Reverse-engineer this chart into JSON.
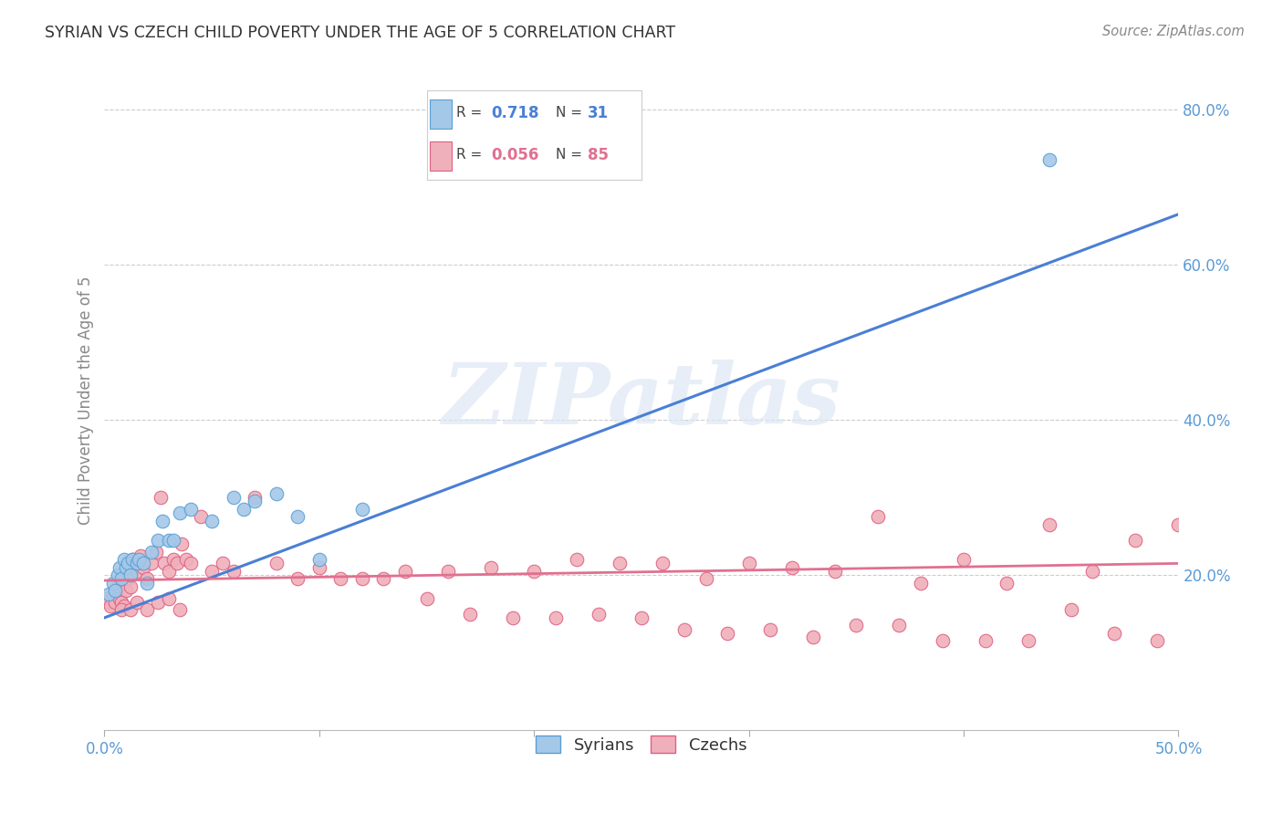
{
  "title": "SYRIAN VS CZECH CHILD POVERTY UNDER THE AGE OF 5 CORRELATION CHART",
  "source": "Source: ZipAtlas.com",
  "ylabel": "Child Poverty Under the Age of 5",
  "xlim": [
    0.0,
    0.5
  ],
  "ylim": [
    0.0,
    0.85
  ],
  "yticks": [
    0.0,
    0.2,
    0.4,
    0.6,
    0.8
  ],
  "xticks": [
    0.0,
    0.1,
    0.2,
    0.3,
    0.4,
    0.5
  ],
  "xtick_labels_show": [
    "0.0%",
    "",
    "",
    "",
    "",
    "50.0%"
  ],
  "ytick_labels": [
    "",
    "20.0%",
    "40.0%",
    "60.0%",
    "80.0%"
  ],
  "syrian_color": "#a4c8e8",
  "czech_color": "#f0b0bb",
  "syrian_edge": "#5a9fd4",
  "czech_edge": "#e06080",
  "line_blue": "#4a7fd4",
  "line_pink": "#e07090",
  "watermark": "ZIPatlas",
  "bg_color": "#ffffff",
  "grid_color": "#cccccc",
  "tick_color": "#5b9bd5",
  "ylabel_color": "#888888",
  "syrian_x": [
    0.002,
    0.004,
    0.005,
    0.006,
    0.007,
    0.008,
    0.009,
    0.01,
    0.011,
    0.012,
    0.013,
    0.015,
    0.016,
    0.018,
    0.02,
    0.022,
    0.025,
    0.027,
    0.03,
    0.032,
    0.035,
    0.04,
    0.05,
    0.06,
    0.065,
    0.07,
    0.08,
    0.09,
    0.1,
    0.12,
    0.44
  ],
  "syrian_y": [
    0.175,
    0.19,
    0.18,
    0.2,
    0.21,
    0.195,
    0.22,
    0.21,
    0.215,
    0.2,
    0.22,
    0.215,
    0.22,
    0.215,
    0.19,
    0.23,
    0.245,
    0.27,
    0.245,
    0.245,
    0.28,
    0.285,
    0.27,
    0.3,
    0.285,
    0.295,
    0.305,
    0.275,
    0.22,
    0.285,
    0.735
  ],
  "czech_x": [
    0.001,
    0.002,
    0.003,
    0.004,
    0.005,
    0.006,
    0.007,
    0.008,
    0.009,
    0.01,
    0.011,
    0.012,
    0.013,
    0.015,
    0.016,
    0.017,
    0.018,
    0.02,
    0.022,
    0.024,
    0.026,
    0.028,
    0.03,
    0.032,
    0.034,
    0.036,
    0.038,
    0.04,
    0.045,
    0.05,
    0.055,
    0.06,
    0.07,
    0.08,
    0.09,
    0.1,
    0.11,
    0.12,
    0.13,
    0.14,
    0.16,
    0.18,
    0.2,
    0.22,
    0.24,
    0.26,
    0.28,
    0.3,
    0.32,
    0.34,
    0.36,
    0.38,
    0.4,
    0.42,
    0.44,
    0.46,
    0.48,
    0.5,
    0.15,
    0.17,
    0.19,
    0.21,
    0.23,
    0.25,
    0.27,
    0.29,
    0.31,
    0.33,
    0.35,
    0.37,
    0.39,
    0.41,
    0.43,
    0.45,
    0.47,
    0.49,
    0.008,
    0.012,
    0.015,
    0.02,
    0.025,
    0.03,
    0.035
  ],
  "czech_y": [
    0.17,
    0.165,
    0.16,
    0.175,
    0.165,
    0.185,
    0.17,
    0.165,
    0.16,
    0.18,
    0.195,
    0.185,
    0.22,
    0.205,
    0.215,
    0.225,
    0.21,
    0.195,
    0.215,
    0.23,
    0.3,
    0.215,
    0.205,
    0.22,
    0.215,
    0.24,
    0.22,
    0.215,
    0.275,
    0.205,
    0.215,
    0.205,
    0.3,
    0.215,
    0.195,
    0.21,
    0.195,
    0.195,
    0.195,
    0.205,
    0.205,
    0.21,
    0.205,
    0.22,
    0.215,
    0.215,
    0.195,
    0.215,
    0.21,
    0.205,
    0.275,
    0.19,
    0.22,
    0.19,
    0.265,
    0.205,
    0.245,
    0.265,
    0.17,
    0.15,
    0.145,
    0.145,
    0.15,
    0.145,
    0.13,
    0.125,
    0.13,
    0.12,
    0.135,
    0.135,
    0.115,
    0.115,
    0.115,
    0.155,
    0.125,
    0.115,
    0.155,
    0.155,
    0.165,
    0.155,
    0.165,
    0.17,
    0.155
  ],
  "syr_line_x": [
    0.0,
    0.5
  ],
  "syr_line_y": [
    0.145,
    0.665
  ],
  "cze_line_x": [
    0.0,
    0.5
  ],
  "cze_line_y": [
    0.193,
    0.215
  ]
}
